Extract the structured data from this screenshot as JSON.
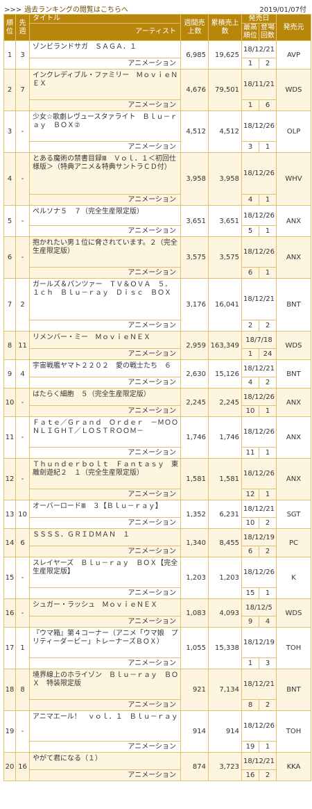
{
  "header": {
    "arrows": ">>>",
    "link_text": "過去ランキングの閲覧はこちらへ",
    "date": "2019/01/07付"
  },
  "columns": {
    "rank": "順位",
    "prev": "先週",
    "title": "タイトル",
    "artist": "アーティスト",
    "weekly": "週間売上数",
    "total": "累積売上数",
    "release_group": "発売日",
    "best": "最高順位",
    "weeks": "登場回数",
    "label": "発売元"
  },
  "rows": [
    {
      "rank": "1",
      "prev": "3",
      "title": "ゾンビランドサガ　ＳＡＧＡ．１",
      "artist": "アニメーション",
      "weekly": "6,985",
      "total": "19,625",
      "release": "18/12/21",
      "best": "1",
      "weeks": "2",
      "label": "AVP"
    },
    {
      "rank": "2",
      "prev": "7",
      "title": "インクレディブル・ファミリー　ＭｏｖｉｅＮＥＸ",
      "artist": "アニメーション",
      "weekly": "4,676",
      "total": "79,501",
      "release": "18/11/21",
      "best": "1",
      "weeks": "6",
      "label": "WDS"
    },
    {
      "rank": "3",
      "prev": "-",
      "title": "少女☆歌劇レヴュースタァライト　Ｂｌｕ－ｒａｙ　ＢＯＸ②",
      "artist": "アニメーション",
      "weekly": "4,512",
      "total": "4,512",
      "release": "18/12/26",
      "best": "3",
      "weeks": "1",
      "label": "OLP"
    },
    {
      "rank": "4",
      "prev": "-",
      "title": "とある魔術の禁書目録Ⅲ　Ｖｏｌ．１＜初回仕様版＞（特典アニメ＆特典サントラＣＤ付）",
      "artist": "アニメーション",
      "weekly": "3,958",
      "total": "3,958",
      "release": "18/12/26",
      "best": "4",
      "weeks": "1",
      "label": "WHV"
    },
    {
      "rank": "5",
      "prev": "-",
      "title": "ペルソナ５　７（完全生産限定版）",
      "artist": "アニメーション",
      "weekly": "3,651",
      "total": "3,651",
      "release": "18/12/26",
      "best": "5",
      "weeks": "1",
      "label": "ANX"
    },
    {
      "rank": "6",
      "prev": "-",
      "title": "抱かれたい男１位に脅されています。２（完全生産限定版）",
      "artist": "アニメーション",
      "weekly": "3,575",
      "total": "3,575",
      "release": "18/12/26",
      "best": "6",
      "weeks": "1",
      "label": "ANX"
    },
    {
      "rank": "7",
      "prev": "2",
      "title": "ガールズ＆パンツァー　ＴＶ＆ＯＶＡ　５．１ｃｈ　Ｂｌｕ－ｒａｙ　Ｄｉｓｃ　ＢＯＸ",
      "artist": "アニメーション",
      "weekly": "3,176",
      "total": "16,041",
      "release": "18/12/21",
      "best": "2",
      "weeks": "2",
      "label": "BNT"
    },
    {
      "rank": "8",
      "prev": "11",
      "title": "リメンバー・ミー　ＭｏｖｉｅＮＥＸ",
      "artist": "アニメーション",
      "weekly": "2,959",
      "total": "163,349",
      "release": "18/7/18",
      "best": "1",
      "weeks": "24",
      "label": "WDS"
    },
    {
      "rank": "9",
      "prev": "4",
      "title": "宇宙戦艦ヤマト２２０２　愛の戦士たち　６",
      "artist": "アニメーション",
      "weekly": "2,630",
      "total": "15,126",
      "release": "18/12/21",
      "best": "4",
      "weeks": "2",
      "label": "BNT"
    },
    {
      "rank": "10",
      "prev": "-",
      "title": "はたらく細胞　５（完全生産限定版）",
      "artist": "アニメーション",
      "weekly": "2,245",
      "total": "2,245",
      "release": "18/12/26",
      "best": "10",
      "weeks": "1",
      "label": "ANX"
    },
    {
      "rank": "11",
      "prev": "-",
      "title": "Ｆａｔｅ／Ｇｒａｎｄ　Ｏｒｄｅｒ　－ＭＯＯＮＬＩＧＨＴ／ＬＯＳＴＲＯＯＭ－",
      "artist": "アニメーション",
      "weekly": "1,746",
      "total": "1,746",
      "release": "18/12/26",
      "best": "11",
      "weeks": "1",
      "label": "ANX"
    },
    {
      "rank": "12",
      "prev": "-",
      "title": "Ｔｈｕｎｄｅｒｂｏｌｔ　Ｆａｎｔａｓｙ　東離劍遊紀２　１（完全生産限定版）",
      "artist": "アニメーション",
      "weekly": "1,581",
      "total": "1,581",
      "release": "18/12/26",
      "best": "12",
      "weeks": "1",
      "label": "ANX"
    },
    {
      "rank": "13",
      "prev": "10",
      "title": "オーバーロードⅢ　３【Ｂｌｕ－ｒａｙ】",
      "artist": "アニメーション",
      "weekly": "1,352",
      "total": "6,231",
      "release": "18/12/21",
      "best": "10",
      "weeks": "2",
      "label": "SGT"
    },
    {
      "rank": "14",
      "prev": "6",
      "title": "ＳＳＳＳ．ＧＲＩＤＭＡＮ　１",
      "artist": "アニメーション",
      "weekly": "1,340",
      "total": "8,455",
      "release": "18/12/19",
      "best": "6",
      "weeks": "2",
      "label": "PC"
    },
    {
      "rank": "15",
      "prev": "-",
      "title": "スレイヤーズ　Ｂｌｕ－ｒａｙ　ＢＯＸ【完全生産限定版】",
      "artist": "アニメーション",
      "weekly": "1,203",
      "total": "1,203",
      "release": "18/12/26",
      "best": "15",
      "weeks": "1",
      "label": "K"
    },
    {
      "rank": "16",
      "prev": "-",
      "title": "シュガー・ラッシュ　ＭｏｖｉｅＮＥＸ",
      "artist": "アニメーション",
      "weekly": "1,083",
      "total": "4,093",
      "release": "18/12/5",
      "best": "9",
      "weeks": "4",
      "label": "WDS"
    },
    {
      "rank": "17",
      "prev": "1",
      "title": "『ウマ箱』第４コーナー（アニメ「ウマ娘　プリティーダービー」トレーナーズＢＯＸ）",
      "artist": "アニメーション",
      "weekly": "1,055",
      "total": "15,338",
      "release": "18/12/19",
      "best": "1",
      "weeks": "3",
      "label": "TOH"
    },
    {
      "rank": "18",
      "prev": "8",
      "title": "境界線上のホライゾン　Ｂｌｕ－ｒａｙ　ＢＯＸ　特装限定版",
      "artist": "アニメーション",
      "weekly": "921",
      "total": "7,134",
      "release": "18/12/21",
      "best": "8",
      "weeks": "2",
      "label": "BNT"
    },
    {
      "rank": "19",
      "prev": "-",
      "title": "アニマエール！　ｖｏｌ．１　Ｂｌｕ－ｒａｙ",
      "artist": "アニメーション",
      "weekly": "914",
      "total": "914",
      "release": "18/12/26",
      "best": "19",
      "weeks": "1",
      "label": "TOH"
    },
    {
      "rank": "20",
      "prev": "16",
      "title": "やがて君になる（１）",
      "artist": "アニメーション",
      "weekly": "874",
      "total": "3,723",
      "release": "18/12/21",
      "best": "16",
      "weeks": "2",
      "label": "KKA"
    }
  ]
}
